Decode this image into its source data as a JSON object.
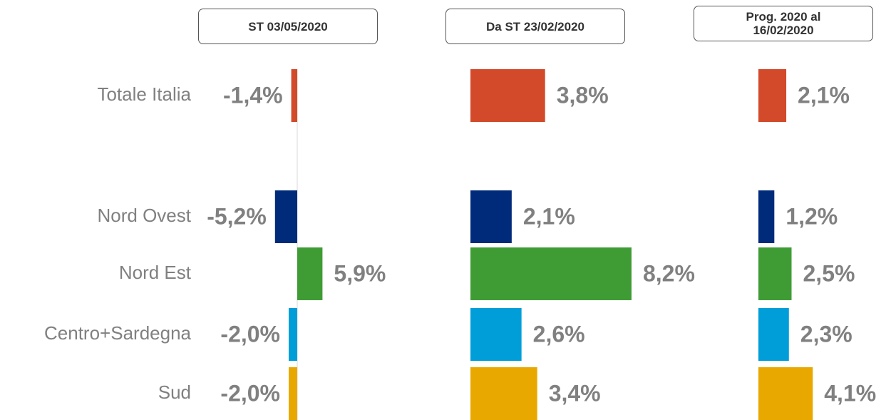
{
  "chart_data": [
    {
      "type": "hbar",
      "title": "ST 03/05/2020",
      "categories": [
        "Totale Italia",
        "Nord Ovest",
        "Nord Est",
        "Centro+Sardegna",
        "Sud"
      ],
      "values": [
        -1.4,
        -5.2,
        5.9,
        -2.0,
        -2.0
      ],
      "value_labels": [
        "-1,4%",
        "-5,2%",
        "5,9%",
        "-2,0%",
        "-2,0%"
      ],
      "colors": [
        "#d34a2a",
        "#002b7a",
        "#3f9c35",
        "#009ed8",
        "#e8a800"
      ],
      "xlim": [
        -6,
        6
      ]
    },
    {
      "type": "hbar",
      "title": "Da ST 23/02/2020",
      "values": [
        3.8,
        2.1,
        8.2,
        2.6,
        3.4
      ],
      "value_labels": [
        "3,8%",
        "2,1%",
        "8,2%",
        "2,6%",
        "3,4%"
      ],
      "colors": [
        "#d34a2a",
        "#002b7a",
        "#3f9c35",
        "#009ed8",
        "#e8a800"
      ],
      "xlim": [
        0,
        9
      ]
    },
    {
      "type": "hbar",
      "title": "Prog. 2020 al 16/02/2020",
      "values": [
        2.1,
        1.2,
        2.5,
        2.3,
        4.1
      ],
      "value_labels": [
        "2,1%",
        "1,2%",
        "2,5%",
        "2,3%",
        "4,1%"
      ],
      "colors": [
        "#d34a2a",
        "#002b7a",
        "#3f9c35",
        "#009ed8",
        "#e8a800"
      ],
      "xlim": [
        0,
        5
      ]
    }
  ]
}
